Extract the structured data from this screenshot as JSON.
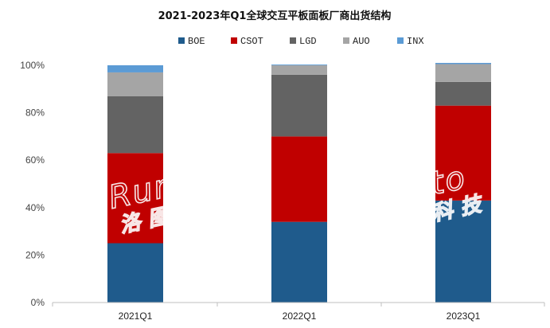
{
  "chart_data": {
    "type": "bar",
    "stacked": true,
    "title": "2021-2023年Q1全球交互平板面板厂商出货结构",
    "categories": [
      "2021Q1",
      "2022Q1",
      "2023Q1"
    ],
    "series": [
      {
        "name": "BOE",
        "color": "#1f5b8c",
        "values": [
          25,
          34,
          43
        ]
      },
      {
        "name": "CSOT",
        "color": "#c00000",
        "values": [
          38,
          36,
          40
        ]
      },
      {
        "name": "LGD",
        "color": "#636363",
        "values": [
          24,
          26,
          10
        ]
      },
      {
        "name": "AUO",
        "color": "#a5a5a5",
        "values": [
          10,
          4,
          7.5
        ]
      },
      {
        "name": "INX",
        "color": "#5b9bd5",
        "values": [
          3,
          0.3,
          0.5
        ]
      }
    ],
    "yticks": [
      "0%",
      "20%",
      "40%",
      "60%",
      "80%",
      "100%"
    ],
    "ylim": [
      0,
      100
    ],
    "legend": "top",
    "grid": false
  },
  "watermark": {
    "latin": "Runto",
    "cjk": "洛图科技"
  }
}
